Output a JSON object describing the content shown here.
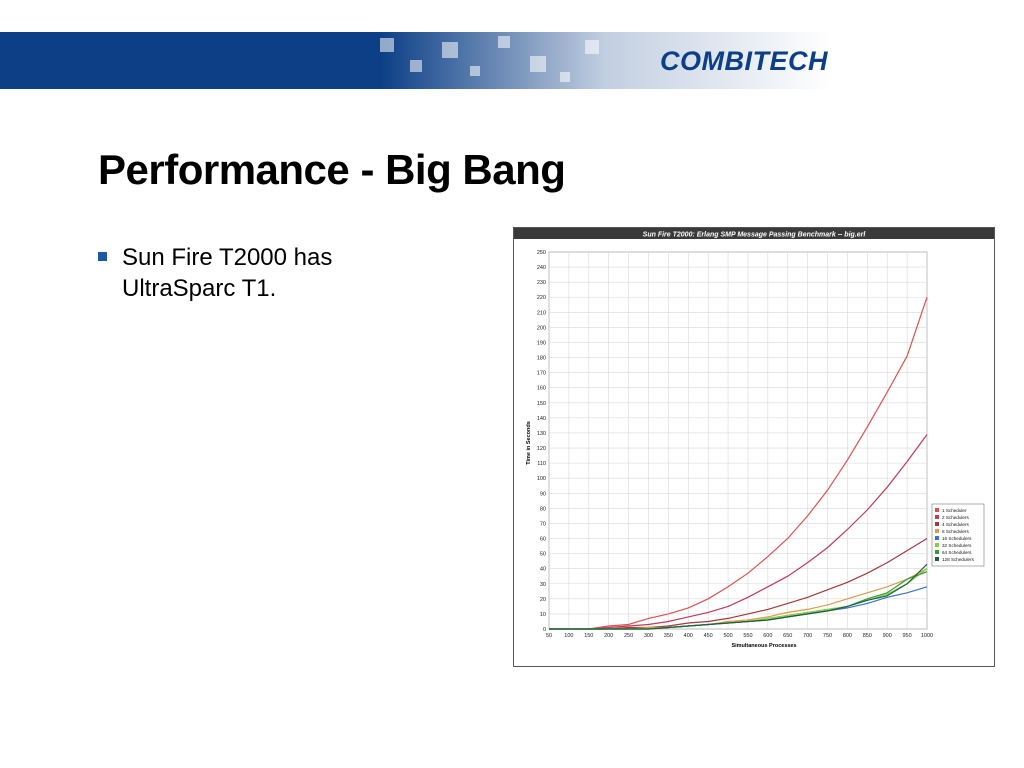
{
  "header": {
    "logo_text": "COMBITECH",
    "brand_color": "#0c3f86"
  },
  "slide": {
    "title": "Performance - Big Bang",
    "bullets": [
      {
        "text": "Sun Fire T2000 has UltraSparc T1."
      }
    ]
  },
  "chart_data": {
    "type": "line",
    "title": "Sun Fire T2000: Erlang SMP Message Passing Benchmark -- big.erl",
    "xlabel": "Simultaneous Processes",
    "ylabel": "Time in Seconds",
    "xlim": [
      50,
      1000
    ],
    "ylim": [
      0,
      250
    ],
    "x_ticks": [
      50,
      100,
      150,
      200,
      250,
      300,
      350,
      400,
      450,
      500,
      550,
      600,
      650,
      700,
      750,
      800,
      850,
      900,
      950,
      1000
    ],
    "y_ticks": [
      0,
      10,
      20,
      30,
      40,
      50,
      60,
      70,
      80,
      90,
      100,
      110,
      120,
      130,
      140,
      150,
      160,
      170,
      180,
      190,
      200,
      210,
      220,
      230,
      240,
      250
    ],
    "grid": true,
    "legend_position": "right",
    "x": [
      50,
      100,
      150,
      200,
      250,
      300,
      350,
      400,
      450,
      500,
      550,
      600,
      650,
      700,
      750,
      800,
      850,
      900,
      950,
      1000
    ],
    "series": [
      {
        "name": "1 Scheduler",
        "color": "#e05050",
        "values": [
          0,
          0,
          0,
          2,
          3,
          7,
          10,
          14,
          20,
          28,
          37,
          48,
          60,
          75,
          92,
          112,
          134,
          157,
          181,
          220
        ]
      },
      {
        "name": "2 Schedulers",
        "color": "#c03a5a",
        "values": [
          0,
          0,
          0,
          1,
          2,
          3,
          5,
          8,
          11,
          15,
          21,
          28,
          35,
          44,
          54,
          66,
          79,
          94,
          111,
          129
        ]
      },
      {
        "name": "4 Schedulers",
        "color": "#a03a3a",
        "values": [
          0,
          0,
          0,
          0,
          1,
          1,
          2,
          4,
          5,
          7,
          10,
          13,
          17,
          21,
          26,
          31,
          37,
          44,
          52,
          60
        ]
      },
      {
        "name": "8 Schedulers",
        "color": "#e09850",
        "values": [
          0,
          0,
          0,
          0,
          0,
          1,
          1,
          2,
          3,
          5,
          6,
          8,
          11,
          13,
          16,
          20,
          24,
          28,
          33,
          40
        ]
      },
      {
        "name": "16 Schedulers",
        "color": "#3a70d0",
        "values": [
          0,
          0,
          0,
          0,
          0,
          0,
          1,
          2,
          3,
          4,
          5,
          6,
          8,
          10,
          12,
          14,
          17,
          21,
          24,
          28
        ]
      },
      {
        "name": "32 Schedulers",
        "color": "#80d040",
        "values": [
          0,
          0,
          0,
          0,
          0,
          0,
          1,
          2,
          3,
          4,
          5,
          7,
          9,
          11,
          13,
          15,
          19,
          23,
          30,
          40
        ]
      },
      {
        "name": "64 Schedulers",
        "color": "#30a030",
        "values": [
          0,
          0,
          0,
          0,
          0,
          0,
          1,
          2,
          3,
          4,
          5,
          6,
          8,
          10,
          12,
          15,
          20,
          24,
          33,
          38
        ]
      },
      {
        "name": "128 Schedulers",
        "color": "#206040",
        "values": [
          0,
          0,
          0,
          0,
          0,
          0,
          1,
          2,
          3,
          4,
          5,
          6,
          8,
          10,
          12,
          15,
          19,
          22,
          30,
          43
        ]
      }
    ]
  }
}
